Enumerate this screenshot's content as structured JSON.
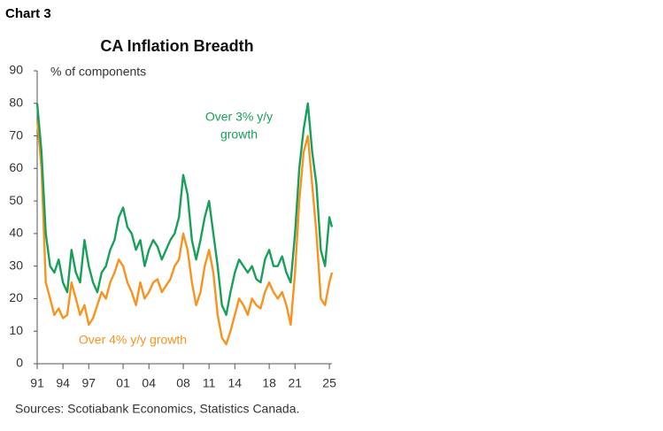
{
  "chart_data": {
    "type": "line",
    "chart_label": "Chart 3",
    "title": "CA Inflation Breadth",
    "y_label": "% of components",
    "source": "Sources: Scotiabank Economics, Statistics Canada.",
    "annotations": [
      {
        "lines": [
          "Over 3% y/y",
          "growth"
        ],
        "series": 0
      },
      {
        "lines": [
          "Over 4% y/y growth"
        ],
        "series": 1
      }
    ],
    "x": [
      1991,
      1991.5,
      1992,
      1992.5,
      1993,
      1993.5,
      1994,
      1994.5,
      1995,
      1995.5,
      1996,
      1996.5,
      1997,
      1997.5,
      1998,
      1998.5,
      1999,
      1999.5,
      2000,
      2000.5,
      2001,
      2001.5,
      2002,
      2002.5,
      2003,
      2003.5,
      2004,
      2004.5,
      2005,
      2005.5,
      2006,
      2006.5,
      2007,
      2007.5,
      2008,
      2008.5,
      2009,
      2009.5,
      2010,
      2010.5,
      2011,
      2011.5,
      2012,
      2012.5,
      2013,
      2013.5,
      2014,
      2014.5,
      2015,
      2015.5,
      2016,
      2016.5,
      2017,
      2017.5,
      2018,
      2018.5,
      2019,
      2019.5,
      2020,
      2020.5,
      2021,
      2021.5,
      2022,
      2022.5,
      2023,
      2023.5,
      2024,
      2024.5,
      2025,
      2025.3
    ],
    "series": [
      {
        "name": "Over 3% y/y growth",
        "color": "#18a05a",
        "values": [
          80,
          65,
          40,
          30,
          28,
          32,
          25,
          22,
          35,
          28,
          25,
          38,
          30,
          25,
          22,
          28,
          30,
          35,
          38,
          45,
          48,
          42,
          40,
          35,
          38,
          30,
          35,
          38,
          36,
          32,
          35,
          38,
          40,
          45,
          58,
          52,
          38,
          32,
          38,
          45,
          50,
          40,
          30,
          18,
          15,
          22,
          28,
          32,
          30,
          28,
          30,
          26,
          25,
          32,
          35,
          30,
          30,
          33,
          28,
          25,
          40,
          60,
          72,
          80,
          65,
          55,
          35,
          30,
          45,
          42
        ]
      },
      {
        "name": "Over 4% y/y growth",
        "color": "#f7931e",
        "values": [
          75,
          60,
          25,
          20,
          15,
          17,
          14,
          15,
          25,
          20,
          15,
          18,
          12,
          14,
          18,
          22,
          20,
          25,
          28,
          32,
          30,
          25,
          22,
          18,
          25,
          20,
          22,
          25,
          26,
          22,
          24,
          26,
          30,
          32,
          40,
          35,
          25,
          18,
          22,
          30,
          35,
          28,
          15,
          8,
          6,
          10,
          15,
          20,
          18,
          15,
          20,
          18,
          17,
          22,
          25,
          22,
          20,
          22,
          18,
          12,
          28,
          50,
          65,
          70,
          55,
          40,
          20,
          18,
          25,
          28
        ]
      }
    ],
    "xlim": [
      1991,
      2025.3
    ],
    "xticks": [
      {
        "value": 1991,
        "label": "91"
      },
      {
        "value": 1994,
        "label": "94"
      },
      {
        "value": 1997,
        "label": "97"
      },
      {
        "value": 2001,
        "label": "01"
      },
      {
        "value": 2004,
        "label": "04"
      },
      {
        "value": 2008,
        "label": "08"
      },
      {
        "value": 2011,
        "label": "11"
      },
      {
        "value": 2014,
        "label": "14"
      },
      {
        "value": 2018,
        "label": "18"
      },
      {
        "value": 2021,
        "label": "21"
      },
      {
        "value": 2025,
        "label": "25"
      }
    ],
    "ylim": [
      0,
      90
    ],
    "yticks": [
      0,
      10,
      20,
      30,
      40,
      50,
      60,
      70,
      80,
      90
    ],
    "grid": false
  }
}
